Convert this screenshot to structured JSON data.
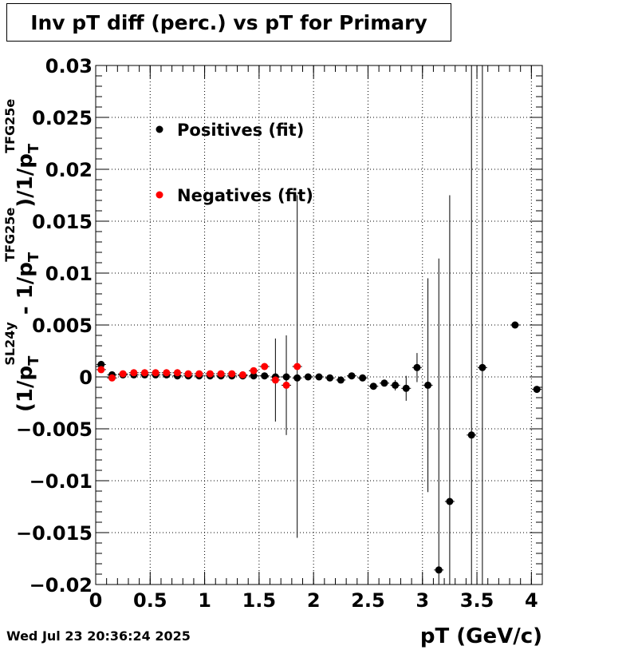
{
  "timestamp": "Wed Jul 23 20:36:24 2025",
  "chart_data": {
    "type": "scatter",
    "title": "Inv pT diff (perc.) vs pT for Primary",
    "xlabel": "pT (GeV/c)",
    "ylabel": {
      "prefix": "(1/p",
      "sub1": "T",
      "sup1": "SL24y",
      "middle": " - 1/p",
      "sub2": "T",
      "sup2": "TFG25e",
      "middle2": ")/1/p",
      "sub3": "T",
      "sup3": "TFG25e"
    },
    "xlim": [
      0,
      4.1
    ],
    "ylim": [
      -0.02,
      0.03
    ],
    "xticks": [
      0,
      0.5,
      1,
      1.5,
      2,
      2.5,
      3,
      3.5,
      4
    ],
    "xtick_labels": [
      "0",
      "0.5",
      "1",
      "1.5",
      "2",
      "2.5",
      "3",
      "3.5",
      "4"
    ],
    "yticks": [
      -0.02,
      -0.015,
      -0.01,
      -0.005,
      0,
      0.005,
      0.01,
      0.015,
      0.02,
      0.025,
      0.03
    ],
    "ytick_labels": [
      "−0.02",
      "−0.015",
      "−0.01",
      "−0.005",
      "0",
      "0.005",
      "0.01",
      "0.015",
      "0.02",
      "0.025",
      "0.03"
    ],
    "grid": true,
    "legend_position": "top-left",
    "series": [
      {
        "name": "Positives (fit)",
        "color": "#000000",
        "points": [
          {
            "x": 0.05,
            "y": 0.0012,
            "err": 0.0003
          },
          {
            "x": 0.15,
            "y": 0.0002,
            "err": 0.0002
          },
          {
            "x": 0.25,
            "y": 0.0002,
            "err": 0.0002
          },
          {
            "x": 0.35,
            "y": 0.0002,
            "err": 0.0002
          },
          {
            "x": 0.45,
            "y": 0.0002,
            "err": 0.0002
          },
          {
            "x": 0.55,
            "y": 0.0002,
            "err": 0.0002
          },
          {
            "x": 0.65,
            "y": 0.0002,
            "err": 0.0002
          },
          {
            "x": 0.75,
            "y": 0.0001,
            "err": 0.0002
          },
          {
            "x": 0.85,
            "y": 0.0001,
            "err": 0.0002
          },
          {
            "x": 0.95,
            "y": 0.0001,
            "err": 0.0002
          },
          {
            "x": 1.05,
            "y": 0.0001,
            "err": 0.0002
          },
          {
            "x": 1.15,
            "y": 0.0001,
            "err": 0.0002
          },
          {
            "x": 1.25,
            "y": 0.0001,
            "err": 0.0002
          },
          {
            "x": 1.35,
            "y": 0.0001,
            "err": 0.0002
          },
          {
            "x": 1.45,
            "y": 0.0001,
            "err": 0.0002
          },
          {
            "x": 1.55,
            "y": 0.0001,
            "err": 0.0002
          },
          {
            "x": 1.65,
            "y": 0.0,
            "err": 0.0002
          },
          {
            "x": 1.75,
            "y": 0.0,
            "err": 0.0002
          },
          {
            "x": 1.85,
            "y": -0.0001,
            "err": 0.0002
          },
          {
            "x": 1.95,
            "y": 0.0,
            "err": 0.0002
          },
          {
            "x": 2.05,
            "y": 0.0,
            "err": 0.0002
          },
          {
            "x": 2.15,
            "y": -0.0001,
            "err": 0.0002
          },
          {
            "x": 2.25,
            "y": -0.0003,
            "err": 0.0002
          },
          {
            "x": 2.35,
            "y": 0.0001,
            "err": 0.0002
          },
          {
            "x": 2.45,
            "y": -0.0001,
            "err": 0.0002
          },
          {
            "x": 2.55,
            "y": -0.0009,
            "err": 0.0003
          },
          {
            "x": 2.65,
            "y": -0.0006,
            "err": 0.0003
          },
          {
            "x": 2.75,
            "y": -0.0008,
            "err": 0.0005
          },
          {
            "x": 2.85,
            "y": -0.0011,
            "err": 0.0012
          },
          {
            "x": 2.95,
            "y": 0.0009,
            "err": 0.0014
          },
          {
            "x": 3.05,
            "y": -0.0008,
            "err": 0.0103
          },
          {
            "x": 3.15,
            "y": -0.0186,
            "err": 0.03
          },
          {
            "x": 3.25,
            "y": -0.012,
            "err": 0.0295
          },
          {
            "x": 3.45,
            "y": -0.0056,
            "err": 0.04
          },
          {
            "x": 3.55,
            "y": 0.0009,
            "err": 0.04
          },
          {
            "x": 3.85,
            "y": 0.005,
            "err": 0.0
          },
          {
            "x": 4.05,
            "y": -0.0012,
            "err": 0.0
          }
        ]
      },
      {
        "name": "Negatives (fit)",
        "color": "#ff0000",
        "points": [
          {
            "x": 0.05,
            "y": 0.0007,
            "err": 0.0003
          },
          {
            "x": 0.15,
            "y": -0.0001,
            "err": 0.0002
          },
          {
            "x": 0.25,
            "y": 0.0003,
            "err": 0.0002
          },
          {
            "x": 0.35,
            "y": 0.0004,
            "err": 0.0002
          },
          {
            "x": 0.45,
            "y": 0.0004,
            "err": 0.0002
          },
          {
            "x": 0.55,
            "y": 0.0004,
            "err": 0.0002
          },
          {
            "x": 0.65,
            "y": 0.0004,
            "err": 0.0002
          },
          {
            "x": 0.75,
            "y": 0.0004,
            "err": 0.0002
          },
          {
            "x": 0.85,
            "y": 0.0003,
            "err": 0.0002
          },
          {
            "x": 0.95,
            "y": 0.0003,
            "err": 0.0002
          },
          {
            "x": 1.05,
            "y": 0.0003,
            "err": 0.0002
          },
          {
            "x": 1.15,
            "y": 0.0003,
            "err": 0.0002
          },
          {
            "x": 1.25,
            "y": 0.0003,
            "err": 0.0002
          },
          {
            "x": 1.35,
            "y": 0.0002,
            "err": 0.0002
          },
          {
            "x": 1.45,
            "y": 0.0006,
            "err": 0.0002
          },
          {
            "x": 1.55,
            "y": 0.001,
            "err": 0.0002
          },
          {
            "x": 1.65,
            "y": -0.0003,
            "err": 0.004
          },
          {
            "x": 1.75,
            "y": -0.0008,
            "err": 0.0048
          },
          {
            "x": 1.85,
            "y": 0.001,
            "err": 0.0165
          }
        ]
      }
    ]
  }
}
